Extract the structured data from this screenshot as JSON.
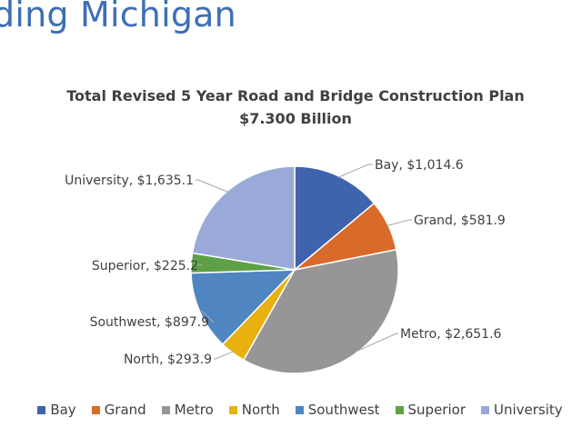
{
  "slide": {
    "title": "ding Michigan"
  },
  "chart_data": {
    "type": "pie",
    "title": "Total Revised 5 Year Road and Bridge Construction Plan",
    "subtitle": "$7.300 Billion",
    "legend_position": "bottom",
    "slices": [
      {
        "name": "Bay",
        "value": 1014.6,
        "label": "Bay, $1,014.6",
        "color": "#3f63ad"
      },
      {
        "name": "Grand",
        "value": 581.9,
        "label": "Grand, $581.9",
        "color": "#d86a2a"
      },
      {
        "name": "Metro",
        "value": 2651.6,
        "label": "Metro, $2,651.6",
        "color": "#969696"
      },
      {
        "name": "North",
        "value": 293.9,
        "label": "North, $293.9",
        "color": "#e8b10f"
      },
      {
        "name": "Southwest",
        "value": 897.9,
        "label": "Southwest, $897.9",
        "color": "#4f86c2"
      },
      {
        "name": "Superior",
        "value": 225.2,
        "label": "Superior, $225.2",
        "color": "#5ea047"
      },
      {
        "name": "University",
        "value": 1635.1,
        "label": "University, $1,635.1",
        "color": "#99a9d8"
      }
    ]
  }
}
